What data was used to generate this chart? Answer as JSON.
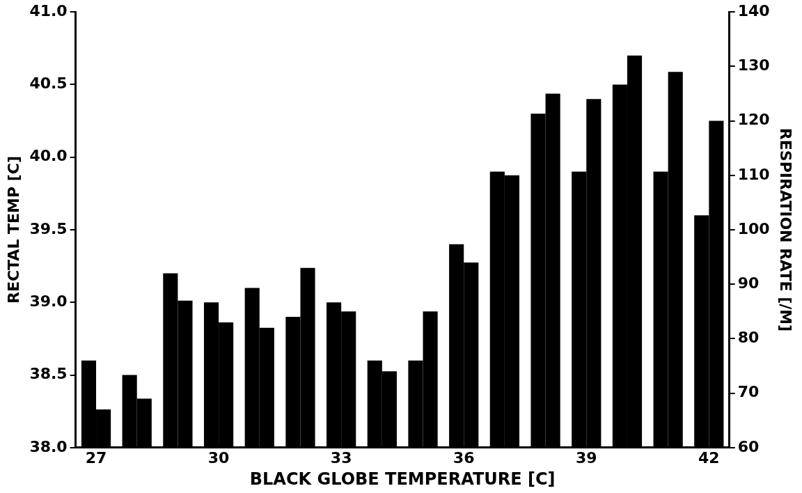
{
  "chart_data": {
    "type": "bar",
    "xlabel": "BLACK GLOBE TEMPERATURE [C]",
    "ylabel": "RECTAL TEMP [C]",
    "y2label": "RESPIRATION RATE [/M]",
    "categories": [
      "27",
      null,
      null,
      "30",
      null,
      null,
      "33",
      null,
      null,
      "36",
      null,
      null,
      "39",
      null,
      null,
      "42"
    ],
    "series": [
      {
        "color": "#000000",
        "values": [
          38.6,
          38.5,
          39.2,
          39.0,
          39.1,
          38.9,
          39.0,
          38.6,
          38.6,
          39.4,
          39.9,
          40.3,
          39.9,
          40.5,
          39.9,
          39.6
        ]
      },
      {
        "color": "#000000",
        "axis": "y2",
        "values": [
          67,
          69,
          87,
          83,
          82,
          93,
          85,
          74,
          85,
          94,
          110,
          125,
          124,
          132,
          129,
          120
        ]
      }
    ],
    "ylim": [
      38,
      41
    ],
    "yticks": [
      {
        "value": 38,
        "label": "38.0"
      },
      {
        "value": 38.5,
        "label": "38.5"
      },
      {
        "value": 39,
        "label": "39.0"
      },
      {
        "value": 39.5,
        "label": "39.5"
      },
      {
        "value": 40,
        "label": "40.0"
      },
      {
        "value": 40.5,
        "label": "40.5"
      },
      {
        "value": 41,
        "label": "41.0"
      }
    ],
    "y2lim": [
      60,
      140
    ],
    "y2ticks": [
      60,
      70,
      80,
      90,
      100,
      110,
      120,
      130,
      140
    ],
    "grid": false,
    "legend": false
  }
}
